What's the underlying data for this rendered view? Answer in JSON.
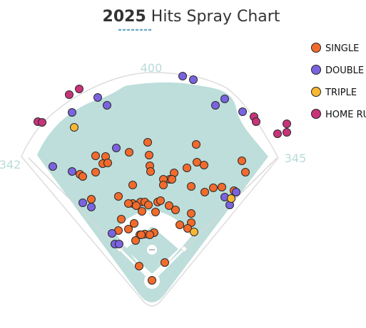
{
  "title": {
    "year": "2025",
    "text": " Hits Spray Chart"
  },
  "fence_labels": {
    "center": "400",
    "left": "342",
    "right": "345"
  },
  "legend": [
    {
      "key": "single",
      "label": "SINGLE",
      "color": "#f26b2c"
    },
    {
      "key": "double",
      "label": "DOUBLE",
      "color": "#7b63e0"
    },
    {
      "key": "triple",
      "label": "TRIPLE",
      "color": "#f7b733"
    },
    {
      "key": "home_run",
      "label": "HOME RUN",
      "color": "#c8347a"
    }
  ],
  "chart_data": {
    "type": "scatter",
    "title": "2025 Hits Spray Chart",
    "field_distances": {
      "left_field": 342,
      "center_field": 400,
      "right_field": 345
    },
    "legend_placement": "top-right",
    "grid": false,
    "x": "horizontal hit location on field diagram",
    "y": "vertical hit location on field diagram",
    "series": [
      {
        "name": "SINGLE",
        "color": "#f26b2c",
        "points": [
          [
            207,
            200
          ],
          [
            181,
            214
          ],
          [
            134,
            219
          ],
          [
            148,
            220
          ],
          [
            209,
            218
          ],
          [
            144,
            230
          ],
          [
            151,
            229
          ],
          [
            275,
            203
          ],
          [
            339,
            226
          ],
          [
            210,
            233
          ],
          [
            211,
            241
          ],
          [
            244,
            243
          ],
          [
            238,
            252
          ],
          [
            229,
            252
          ],
          [
            241,
            252
          ],
          [
            276,
            228
          ],
          [
            286,
            232
          ],
          [
            262,
            236
          ],
          [
            344,
            242
          ],
          [
            229,
            260
          ],
          [
            112,
            245
          ],
          [
            116,
            248
          ],
          [
            134,
            242
          ],
          [
            186,
            260
          ],
          [
            268,
            262
          ],
          [
            287,
            270
          ],
          [
            299,
            264
          ],
          [
            311,
            263
          ],
          [
            328,
            268
          ],
          [
            128,
            280
          ],
          [
            166,
            276
          ],
          [
            186,
            286
          ],
          [
            197,
            284
          ],
          [
            203,
            284
          ],
          [
            208,
            288
          ],
          [
            221,
            284
          ],
          [
            225,
            282
          ],
          [
            237,
            289
          ],
          [
            246,
            295
          ],
          [
            199,
            297
          ],
          [
            180,
            286
          ],
          [
            191,
            289
          ],
          [
            218,
            298
          ],
          [
            268,
            300
          ],
          [
            268,
            313
          ],
          [
            252,
            316
          ],
          [
            263,
            321
          ],
          [
            170,
            308
          ],
          [
            188,
            314
          ],
          [
            166,
            324
          ],
          [
            180,
            322
          ],
          [
            196,
            330
          ],
          [
            203,
            329
          ],
          [
            190,
            338
          ],
          [
            216,
            327
          ],
          [
            198,
            330
          ],
          [
            210,
            330
          ],
          [
            195,
            374
          ],
          [
            231,
            369
          ],
          [
            213,
            394
          ]
        ]
      },
      {
        "name": "DOUBLE",
        "color": "#7b63e0",
        "points": [
          [
            256,
            107
          ],
          [
            271,
            112
          ],
          [
            137,
            137
          ],
          [
            150,
            148
          ],
          [
            101,
            158
          ],
          [
            315,
            139
          ],
          [
            302,
            148
          ],
          [
            340,
            157
          ],
          [
            163,
            208
          ],
          [
            74,
            234
          ],
          [
            101,
            241
          ],
          [
            116,
            285
          ],
          [
            128,
            291
          ],
          [
            331,
            270
          ],
          [
            315,
            277
          ],
          [
            322,
            288
          ],
          [
            157,
            328
          ],
          [
            161,
            343
          ],
          [
            167,
            343
          ]
        ]
      },
      {
        "name": "TRIPLE",
        "color": "#f7b733",
        "points": [
          [
            104,
            179
          ],
          [
            324,
            279
          ],
          [
            272,
            326
          ]
        ]
      },
      {
        "name": "HOME RUN",
        "color": "#c8347a",
        "points": [
          [
            97,
            133
          ],
          [
            111,
            125
          ],
          [
            53,
            171
          ],
          [
            59,
            172
          ],
          [
            356,
            164
          ],
          [
            359,
            171
          ],
          [
            402,
            174
          ],
          [
            402,
            186
          ],
          [
            389,
            188
          ]
        ]
      }
    ]
  }
}
